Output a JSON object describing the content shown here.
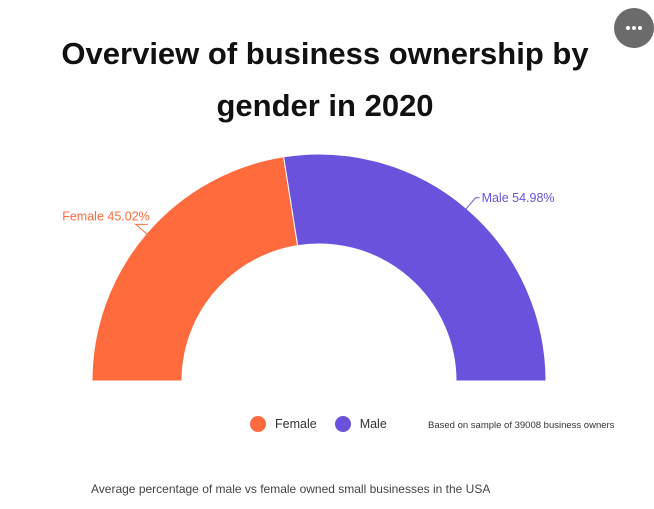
{
  "title": "Overview of business ownership by gender in 2020",
  "menu_icon": "more-horizontal-icon",
  "chart_data": {
    "type": "pie",
    "variant": "semicircle-donut",
    "title": "Overview of business ownership by gender in 2020",
    "slices": [
      {
        "name": "Female",
        "value": 45.02,
        "label": "Female 45.02%",
        "color": "#ff6b3d"
      },
      {
        "name": "Male",
        "value": 54.98,
        "label": "Male 54.98%",
        "color": "#6b52dc"
      }
    ],
    "legend": [
      "Female",
      "Male"
    ],
    "legend_position": "bottom"
  },
  "legend_items": [
    {
      "label": "Female",
      "color": "#ff6b3d"
    },
    {
      "label": "Male",
      "color": "#6b52dc"
    }
  ],
  "note": "Based on sample of 39008 business owners",
  "caption": "Average percentage of male vs female owned small businesses in the USA"
}
